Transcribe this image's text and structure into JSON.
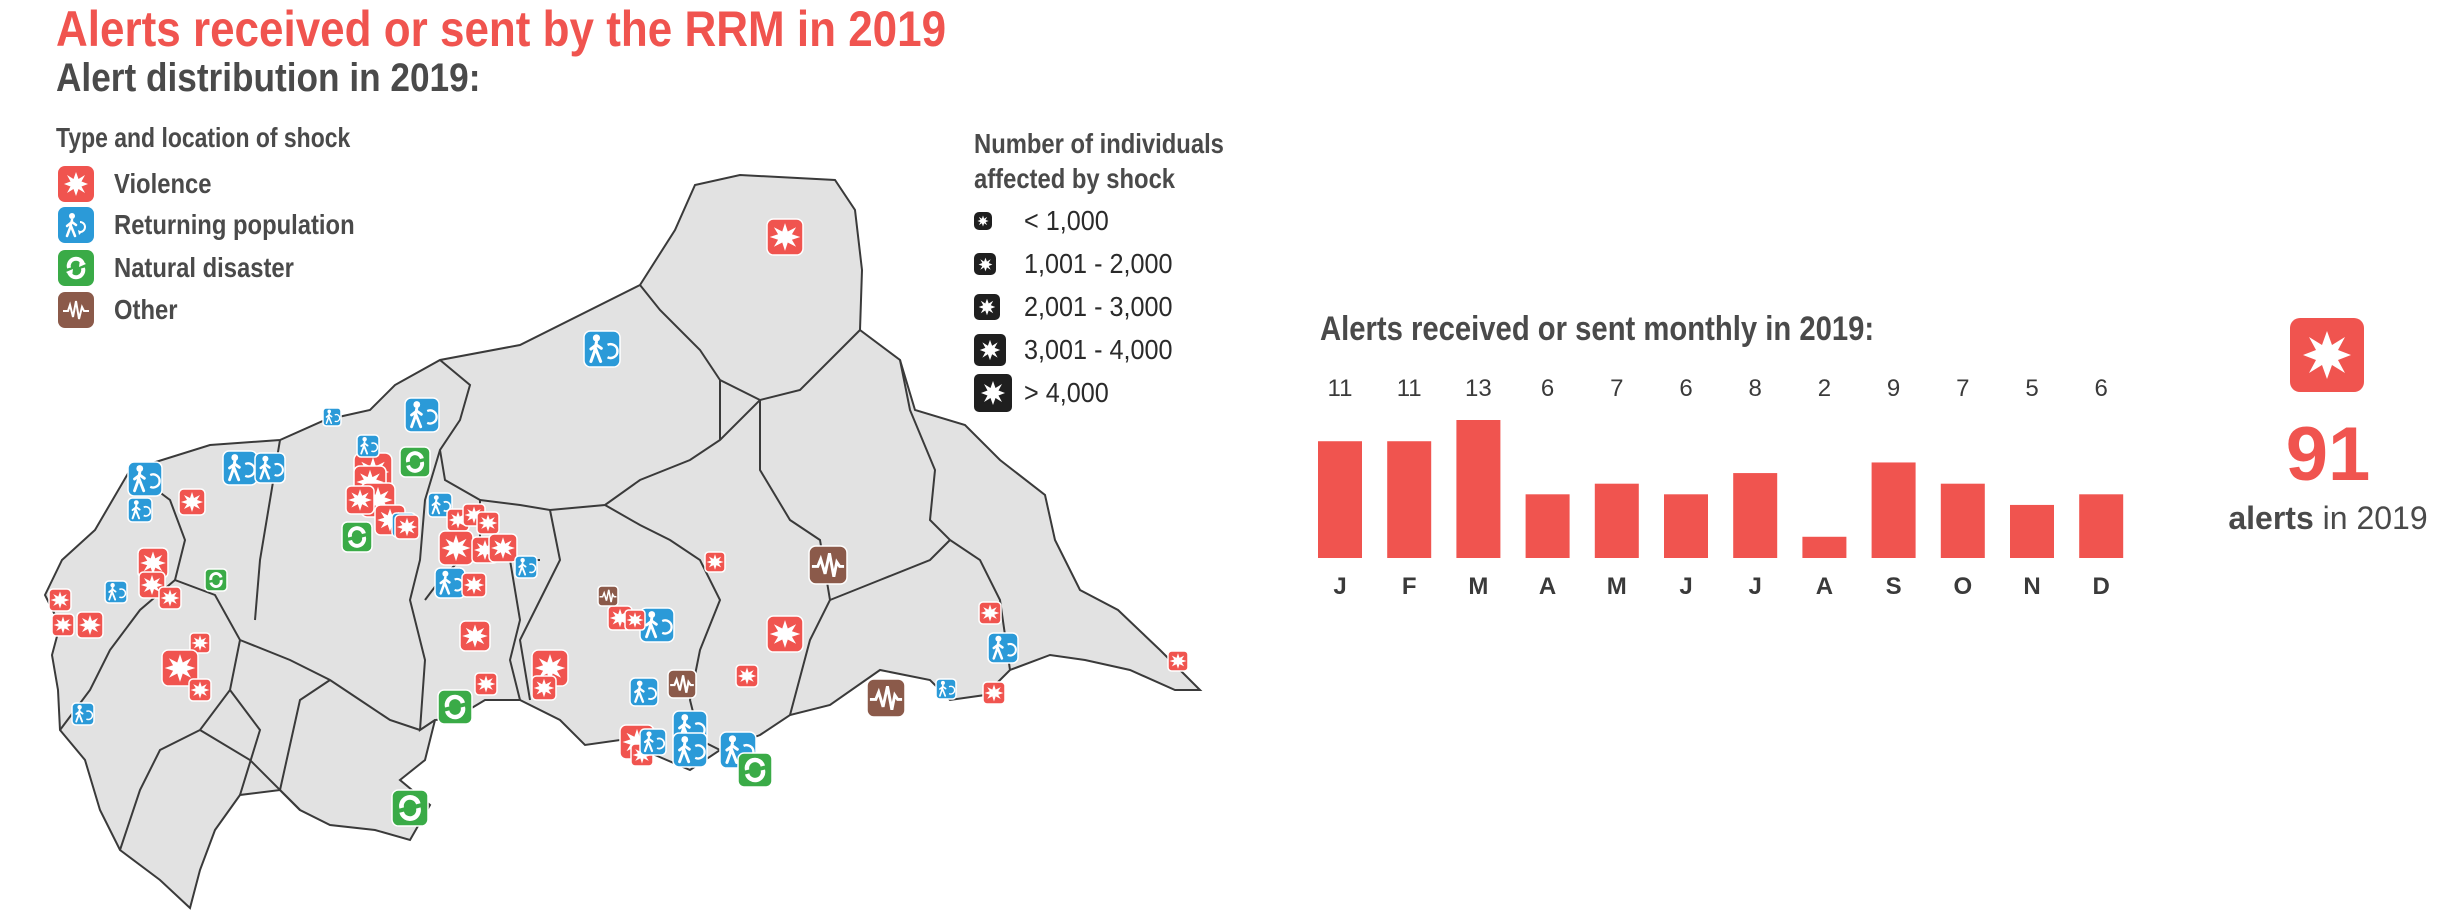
{
  "header": {
    "title": "Alerts received or sent by the RRM in 2019",
    "subtitle": "Alert distribution in 2019:"
  },
  "legend_type": {
    "heading": "Type and location of shock",
    "items": [
      {
        "label": "Violence",
        "color": "#f0544f",
        "icon": "explosion-icon"
      },
      {
        "label": "Returning population",
        "color": "#2b9ad8",
        "icon": "walking-person-icon"
      },
      {
        "label": "Natural disaster",
        "color": "#3aab47",
        "icon": "cyclone-icon"
      },
      {
        "label": "Other",
        "color": "#8b5a4a",
        "icon": "waveform-icon"
      }
    ]
  },
  "legend_size": {
    "heading": "Number of individuals affected by shock",
    "items": [
      {
        "label": "< 1,000"
      },
      {
        "label": "1,001 - 2,000"
      },
      {
        "label": "2,001 - 3,000"
      },
      {
        "label": "3,001 - 4,000"
      },
      {
        "label": "> 4,000"
      }
    ]
  },
  "chart_data": {
    "type": "bar",
    "title": "Alerts received or sent monthly in 2019:",
    "categories": [
      "J",
      "F",
      "M",
      "A",
      "M",
      "J",
      "J",
      "A",
      "S",
      "O",
      "N",
      "D"
    ],
    "values": [
      11,
      11,
      13,
      6,
      7,
      6,
      8,
      2,
      9,
      7,
      5,
      6
    ],
    "color": "#f0544f",
    "grid": false,
    "data_labels": "above",
    "ylim": [
      0,
      13
    ]
  },
  "summary": {
    "total": "91",
    "caption_bold": "alerts",
    "caption_rest": " in 2019",
    "icon": "explosion-icon",
    "color": "#f0544f"
  },
  "colors": {
    "violence": "#f0544f",
    "returning": "#2b9ad8",
    "natural": "#3aab47",
    "other": "#8b5a4a",
    "map_fill": "#e2e2e2",
    "map_stroke": "#3a3a3a"
  }
}
